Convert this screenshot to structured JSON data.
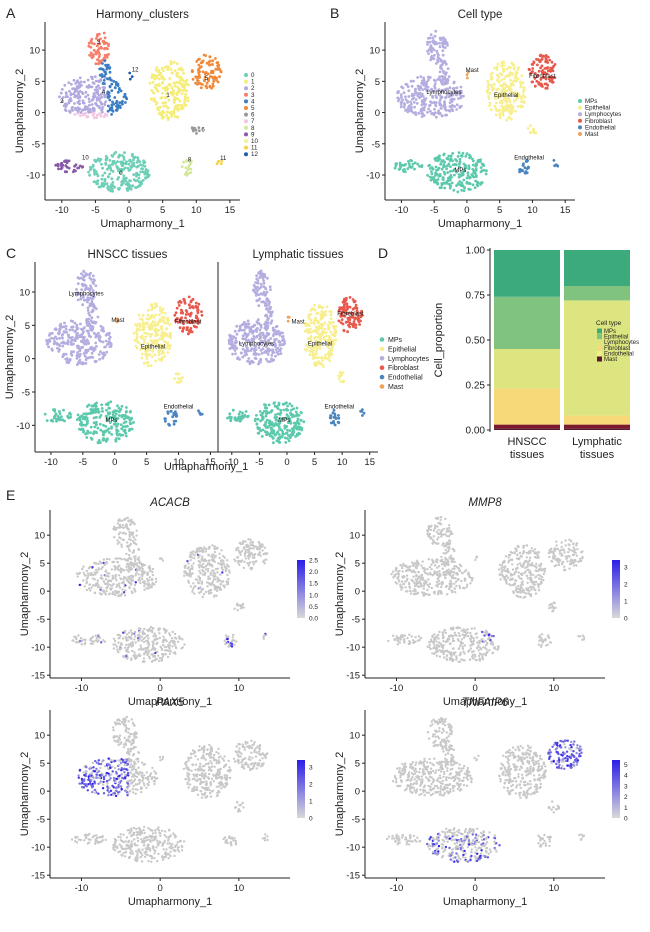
{
  "panel_letters": [
    "A",
    "B",
    "C",
    "D",
    "E"
  ],
  "colors": {
    "mps": "#5cc9ad",
    "epithelial": "#f7ef8f",
    "lymphocytes": "#b4aee0",
    "fibroblast": "#e8584c",
    "endothelial": "#4a85c0",
    "mast": "#f2a35a",
    "gray": "#c8c8c8",
    "expr_low": "#d9d9d9",
    "expr_high": "#2b1ee8",
    "bar_mps": "#3daa7c",
    "bar_epi": "#7fc37f",
    "bar_lym": "#dde580",
    "bar_fib": "#f5ee86",
    "bar_fib2": "#f8d97a",
    "bar_endo": "#7b1a2c",
    "bar_mast": "#5a1a2e"
  },
  "chart_data": [
    {
      "id": "A",
      "type": "scatter",
      "title": "Harmony_clusters",
      "xlabel": "Umapharmony_1",
      "ylabel": "Umapharmony_2",
      "xticks": [
        "-10",
        "-5",
        "0",
        "5",
        "10",
        "15"
      ],
      "yticks": [
        "-10",
        "-5",
        "0",
        "5",
        "10"
      ],
      "xlim": [
        -12.5,
        16.5
      ],
      "ylim": [
        -14,
        14.5
      ],
      "legend": {
        "title": "",
        "position": "right",
        "entries": [
          "0",
          "1",
          "2",
          "3",
          "4",
          "5",
          "6",
          "7",
          "8",
          "9",
          "10",
          "11",
          "12"
        ],
        "colors": [
          "#6ecfb7",
          "#f5ed7a",
          "#b2a9de",
          "#f57f6a",
          "#3c7dc4",
          "#f08a3a",
          "#9a9a9a",
          "#f2c6e2",
          "#d2e89a",
          "#8858a9",
          "#f6ef9c",
          "#f5d14a",
          "#1f5fa8"
        ]
      },
      "point_labels": [
        "0",
        "1",
        "2",
        "3",
        "4",
        "5",
        "6",
        "7",
        "8",
        "9",
        "10",
        "11",
        "12"
      ]
    },
    {
      "id": "B",
      "type": "scatter",
      "title": "Cell type",
      "xlabel": "Umapharmony_1",
      "ylabel": "Umapharmony_2",
      "xticks": [
        "-10",
        "-5",
        "0",
        "5",
        "10",
        "15"
      ],
      "yticks": [
        "-10",
        "-5",
        "0",
        "5",
        "10"
      ],
      "xlim": [
        -12.5,
        16.5
      ],
      "ylim": [
        -14,
        14.5
      ],
      "legend": {
        "title": "",
        "position": "right",
        "entries": [
          "MPs",
          "Epithelial",
          "Lymphocytes",
          "Fibroblast",
          "Endothelial",
          "Mast"
        ]
      },
      "point_labels": [
        "Lymphocytes",
        "Epithelial",
        "Fibroblast",
        "Mast",
        "MPs",
        "Endothelial"
      ]
    },
    {
      "id": "C",
      "type": "scatter",
      "titles": [
        "HNSCC tissues",
        "Lymphatic tissues"
      ],
      "xlabel": "Umapharmony_1",
      "ylabel": "Umapharmony_2",
      "xticks": [
        "-10",
        "-5",
        "0",
        "5",
        "10",
        "15"
      ],
      "yticks": [
        "-10",
        "-5",
        "0",
        "5",
        "10"
      ],
      "xlim": [
        -12.5,
        16.5
      ],
      "ylim": [
        -14,
        14.5
      ],
      "legend": {
        "title": "",
        "position": "right",
        "entries": [
          "MPs",
          "Epithelial",
          "Lymphocytes",
          "Fibroblast",
          "Endothelial",
          "Mast"
        ]
      },
      "point_labels": [
        "Lymphocytes",
        "Mast",
        "Fibroblast",
        "Epithelial",
        "MPs",
        "Endothelial"
      ]
    },
    {
      "id": "D",
      "type": "bar",
      "stacked": true,
      "xlabel": "",
      "ylabel": "Cell_proportion",
      "categories": [
        "HNSCC tissues",
        "Lymphatic tissues"
      ],
      "category_lines": [
        [
          "HNSCC",
          "tissues"
        ],
        [
          "Lymphatic",
          "tissues"
        ]
      ],
      "yticks": [
        "0.00",
        "0.25",
        "0.50",
        "0.75",
        "1.00"
      ],
      "ylim": [
        0,
        1
      ],
      "legend": {
        "title": "Cell type",
        "position": "right",
        "entries": [
          "MPs",
          "Epithelial",
          "Lymphocytes",
          "Fibroblast",
          "Endothelial",
          "Mast"
        ]
      },
      "series": [
        {
          "name": "Mast",
          "values": [
            0.01,
            0.01
          ]
        },
        {
          "name": "Endothelial",
          "values": [
            0.02,
            0.02
          ]
        },
        {
          "name": "Fibroblast",
          "values": [
            0.2,
            0.05
          ]
        },
        {
          "name": "Lymphocytes",
          "values": [
            0.22,
            0.64
          ]
        },
        {
          "name": "Epithelial",
          "values": [
            0.29,
            0.08
          ]
        },
        {
          "name": "MPs",
          "values": [
            0.26,
            0.2
          ]
        }
      ]
    },
    {
      "id": "E",
      "type": "scatter",
      "subtype": "feature_plot",
      "xlabel": "Umapharmony_1",
      "ylabel": "Umapharmony_2",
      "xticks": [
        "-10",
        "0",
        "10"
      ],
      "yticks": [
        "-15",
        "-10",
        "-5",
        "0",
        "5",
        "10"
      ],
      "xlim": [
        -14,
        16.5
      ],
      "ylim": [
        -15.5,
        14.5
      ],
      "genes": [
        {
          "name": "ACACB",
          "colorbar_ticks": [
            "2.5",
            "2.0",
            "1.5",
            "1.0",
            "0.5",
            "0.0"
          ],
          "max": 2.5
        },
        {
          "name": "MMP8",
          "colorbar_ticks": [
            "3",
            "2",
            "1",
            "0"
          ],
          "max": 3.4
        },
        {
          "name": "PAX5",
          "colorbar_ticks": [
            "3",
            "2",
            "1",
            "0"
          ],
          "max": 3.4
        },
        {
          "name": "TNFAIP6",
          "colorbar_ticks": [
            "5",
            "4",
            "3",
            "2",
            "1",
            "0"
          ],
          "max": 5.4
        }
      ]
    }
  ]
}
